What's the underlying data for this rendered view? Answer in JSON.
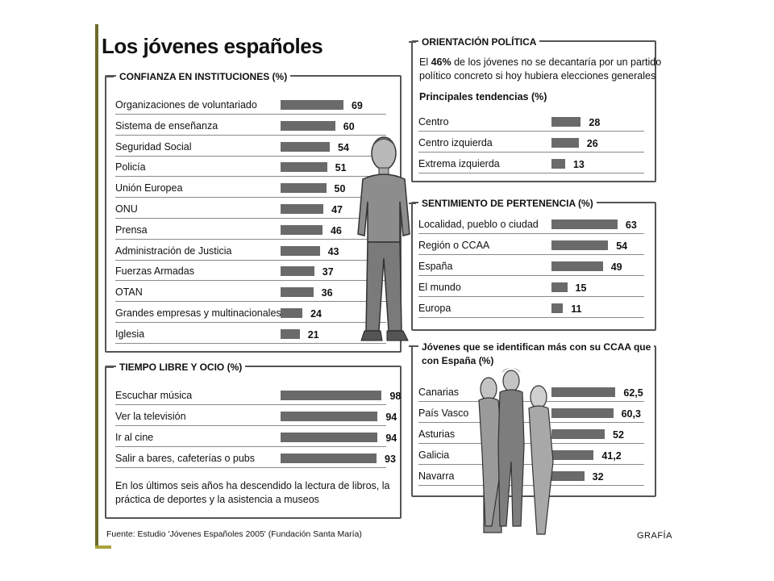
{
  "title": "Los jóvenes españoles",
  "source": "Fuente: Estudio 'Jóvenes Españoles 2005' (Fundación Santa María)",
  "brand": "GRAFÍA",
  "colors": {
    "bar": "#6a6a6a",
    "border": "#555555",
    "accent_rule": "#6d6b2a"
  },
  "confianza": {
    "title": "CONFIANZA EN INSTITUCIONES (%)",
    "labels": [
      "Organizaciones de voluntariado",
      "Sistema de enseñanza",
      "Seguridad Social",
      "Policía",
      "Unión Europea",
      "ONU",
      "Prensa",
      "Administración de Justicia",
      "Fuerzas Armadas",
      "OTAN",
      "Grandes empresas y multinacionales",
      "Iglesia"
    ],
    "values": [
      "69",
      "60",
      "54",
      "51",
      "50",
      "47",
      "46",
      "43",
      "37",
      "36",
      "24",
      "21"
    ]
  },
  "tiempo": {
    "title": "TIEMPO LIBRE Y OCIO (%)",
    "labels": [
      "Escuchar música",
      "Ver la televisión",
      "Ir al cine",
      "Salir a bares, cafeterías o pubs"
    ],
    "values": [
      "98",
      "94",
      "94",
      "93"
    ],
    "note_line1": "En los últimos seis años ha descendido la lectura de libros, la",
    "note_line2": "práctica de deportes y la asistencia a museos"
  },
  "orientacion": {
    "title": "ORIENTACIÓN POLÍTICA",
    "text_pre": "El ",
    "text_pct": "46%",
    "text_post": " de los jóvenes no se decantaría por un partido",
    "text_line2": "político concreto si hoy hubiera elecciones generales",
    "subtitle": "Principales tendencias (%)",
    "labels": [
      "Centro",
      "Centro izquierda",
      "Extrema izquierda"
    ],
    "values": [
      "28",
      "26",
      "13"
    ]
  },
  "pertenencia": {
    "title": "SENTIMIENTO DE PERTENENCIA (%)",
    "labels": [
      "Localidad, pueblo o ciudad",
      "Región o CCAA",
      "España",
      "El mundo",
      "Europa"
    ],
    "values": [
      "63",
      "54",
      "49",
      "15",
      "11"
    ]
  },
  "ccaa": {
    "title_line1": "Jóvenes que se identifican más con su CCAA que",
    "title_line2": "con España (%)",
    "labels": [
      "Canarias",
      "País Vasco",
      "Asturias",
      "Galicia",
      "Navarra"
    ],
    "values": [
      "62,5",
      "60,3",
      "52",
      "41,2",
      "32"
    ]
  },
  "chart_data": [
    {
      "type": "bar",
      "title": "CONFIANZA EN INSTITUCIONES (%)",
      "categories": [
        "Organizaciones de voluntariado",
        "Sistema de enseñanza",
        "Seguridad Social",
        "Policía",
        "Unión Europea",
        "ONU",
        "Prensa",
        "Administración de Justicia",
        "Fuerzas Armadas",
        "OTAN",
        "Grandes empresas y multinacionales",
        "Iglesia"
      ],
      "values": [
        69,
        60,
        54,
        51,
        50,
        47,
        46,
        43,
        37,
        36,
        24,
        21
      ]
    },
    {
      "type": "bar",
      "title": "TIEMPO LIBRE Y OCIO (%)",
      "categories": [
        "Escuchar música",
        "Ver la televisión",
        "Ir al cine",
        "Salir a bares, cafeterías o pubs"
      ],
      "values": [
        98,
        94,
        94,
        93
      ]
    },
    {
      "type": "bar",
      "title": "Principales tendencias (%)",
      "categories": [
        "Centro",
        "Centro izquierda",
        "Extrema izquierda"
      ],
      "values": [
        28,
        26,
        13
      ]
    },
    {
      "type": "bar",
      "title": "SENTIMIENTO DE PERTENENCIA (%)",
      "categories": [
        "Localidad, pueblo o ciudad",
        "Región o CCAA",
        "España",
        "El mundo",
        "Europa"
      ],
      "values": [
        63,
        54,
        49,
        15,
        11
      ]
    },
    {
      "type": "bar",
      "title": "Jóvenes que se identifican más con su CCAA que con España (%)",
      "categories": [
        "Canarias",
        "País Vasco",
        "Asturias",
        "Galicia",
        "Navarra"
      ],
      "values": [
        62.5,
        60.3,
        52,
        41.2,
        32
      ]
    }
  ]
}
